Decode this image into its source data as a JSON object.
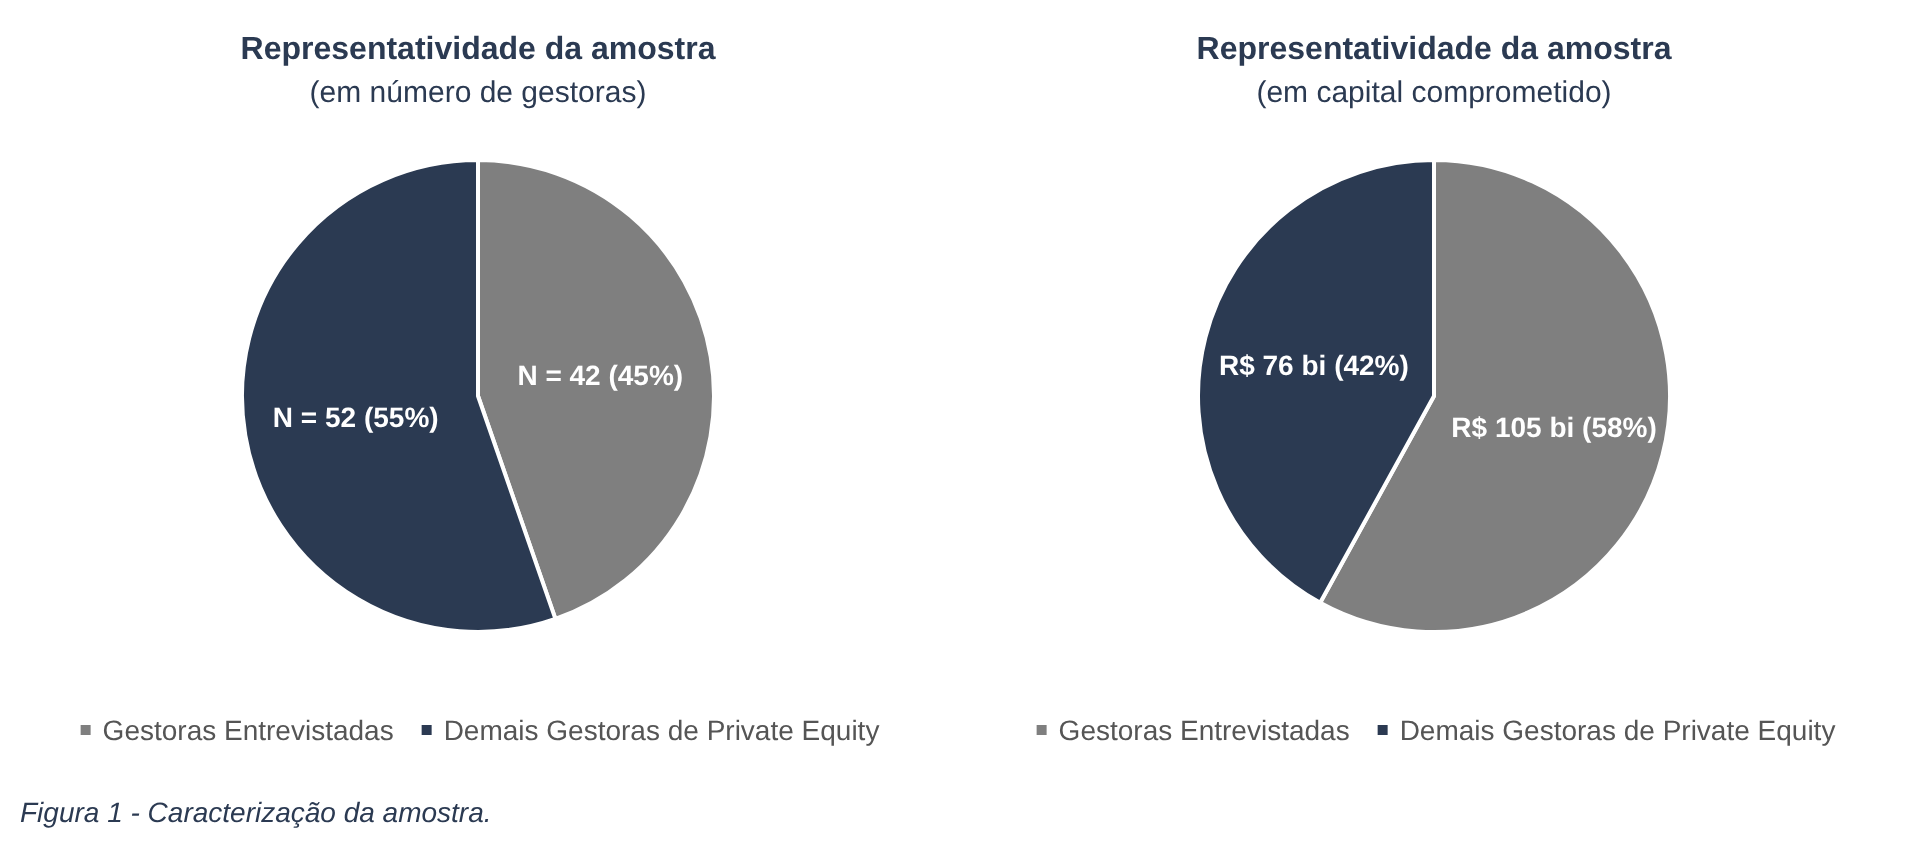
{
  "chart_data": [
    {
      "type": "pie",
      "title": "Representatividade da amostra",
      "subtitle": "(em número de gestoras)",
      "categories": [
        "Gestoras Entrevistadas",
        "Demais Gestoras de Private Equity"
      ],
      "values": [
        42,
        52
      ],
      "colors": [
        "#7f7f7f",
        "#2b3a52"
      ],
      "value_labels": [
        "N = 42 (45%)",
        "N = 52 (55%)"
      ],
      "legend": "bottom",
      "annotations": [
        "Figura 1 - Caracterização da amostra."
      ]
    },
    {
      "type": "pie",
      "title": "Representatividade da amostra",
      "subtitle": "(em capital comprometido)",
      "categories": [
        "Gestoras Entrevistadas",
        "Demais Gestoras de Private Equity"
      ],
      "values": [
        105,
        76
      ],
      "colors": [
        "#7f7f7f",
        "#2b3a52"
      ],
      "value_labels": [
        "R$ 105 bi (58%)",
        "R$ 76 bi (42%)"
      ],
      "legend": "bottom"
    }
  ]
}
